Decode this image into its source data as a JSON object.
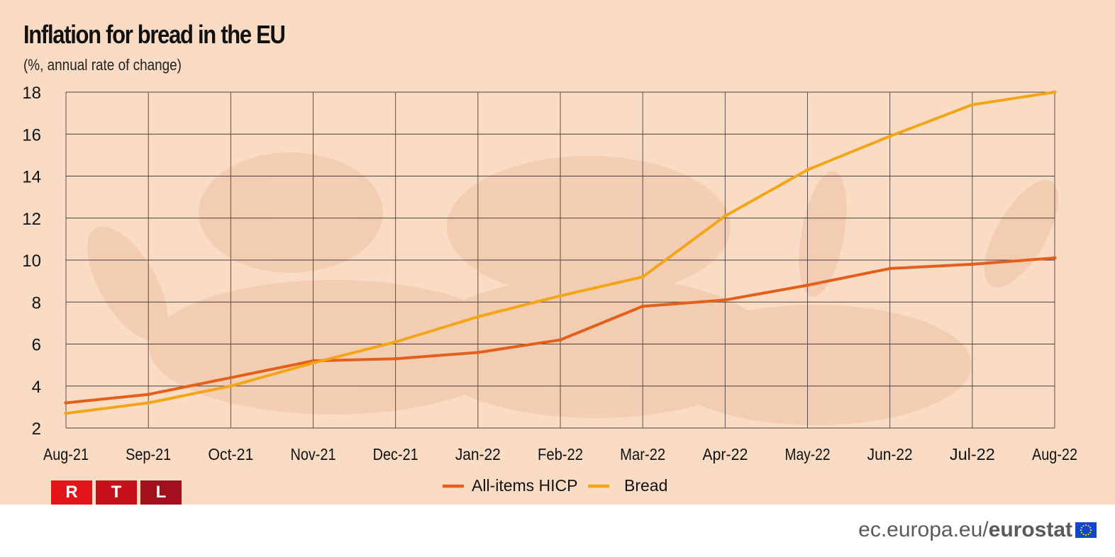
{
  "header": {
    "title": "Inflation for bread in the EU",
    "subtitle": "(%, annual rate of change)"
  },
  "chart_data": {
    "type": "line",
    "title": "Inflation for bread in the EU",
    "subtitle": "(%, annual rate of change)",
    "xlabel": "",
    "ylabel": "",
    "x": [
      "Aug-21",
      "Sep-21",
      "Oct-21",
      "Nov-21",
      "Dec-21",
      "Jan-22",
      "Feb-22",
      "Mar-22",
      "Apr-22",
      "May-22",
      "Jun-22",
      "Jul-22",
      "Aug-22"
    ],
    "yticks": [
      2,
      4,
      6,
      8,
      10,
      12,
      14,
      16,
      18
    ],
    "ylim": [
      2,
      18
    ],
    "grid": true,
    "legend_position": "bottom-center",
    "series": [
      {
        "name": "All-items HICP",
        "color": "#e35f1c",
        "values": [
          3.2,
          3.6,
          4.4,
          5.2,
          5.3,
          5.6,
          6.2,
          7.8,
          8.1,
          8.8,
          9.6,
          9.8,
          10.1
        ]
      },
      {
        "name": "Bread",
        "color": "#f2a516",
        "values": [
          2.7,
          3.2,
          4.0,
          5.1,
          6.1,
          7.3,
          8.3,
          9.2,
          12.1,
          14.3,
          15.9,
          17.4,
          18.0
        ]
      }
    ]
  },
  "colors": {
    "panel_bg": "#fadbc3",
    "grid": "#4a4040",
    "rtl_r": "#e4141b",
    "rtl_t": "#c8101a",
    "rtl_l": "#a1101c",
    "footer_text": "#5a5a5a",
    "eu_blue": "#0e47cb",
    "eu_star": "#ffd617"
  },
  "logo": {
    "letters": [
      "R",
      "T",
      "L"
    ]
  },
  "footer": {
    "domain_text": "ec.europa.eu/",
    "brand_text": "eurostat"
  },
  "icons": {
    "flag": "eu-flag-icon",
    "logo": "rtl-logo"
  }
}
